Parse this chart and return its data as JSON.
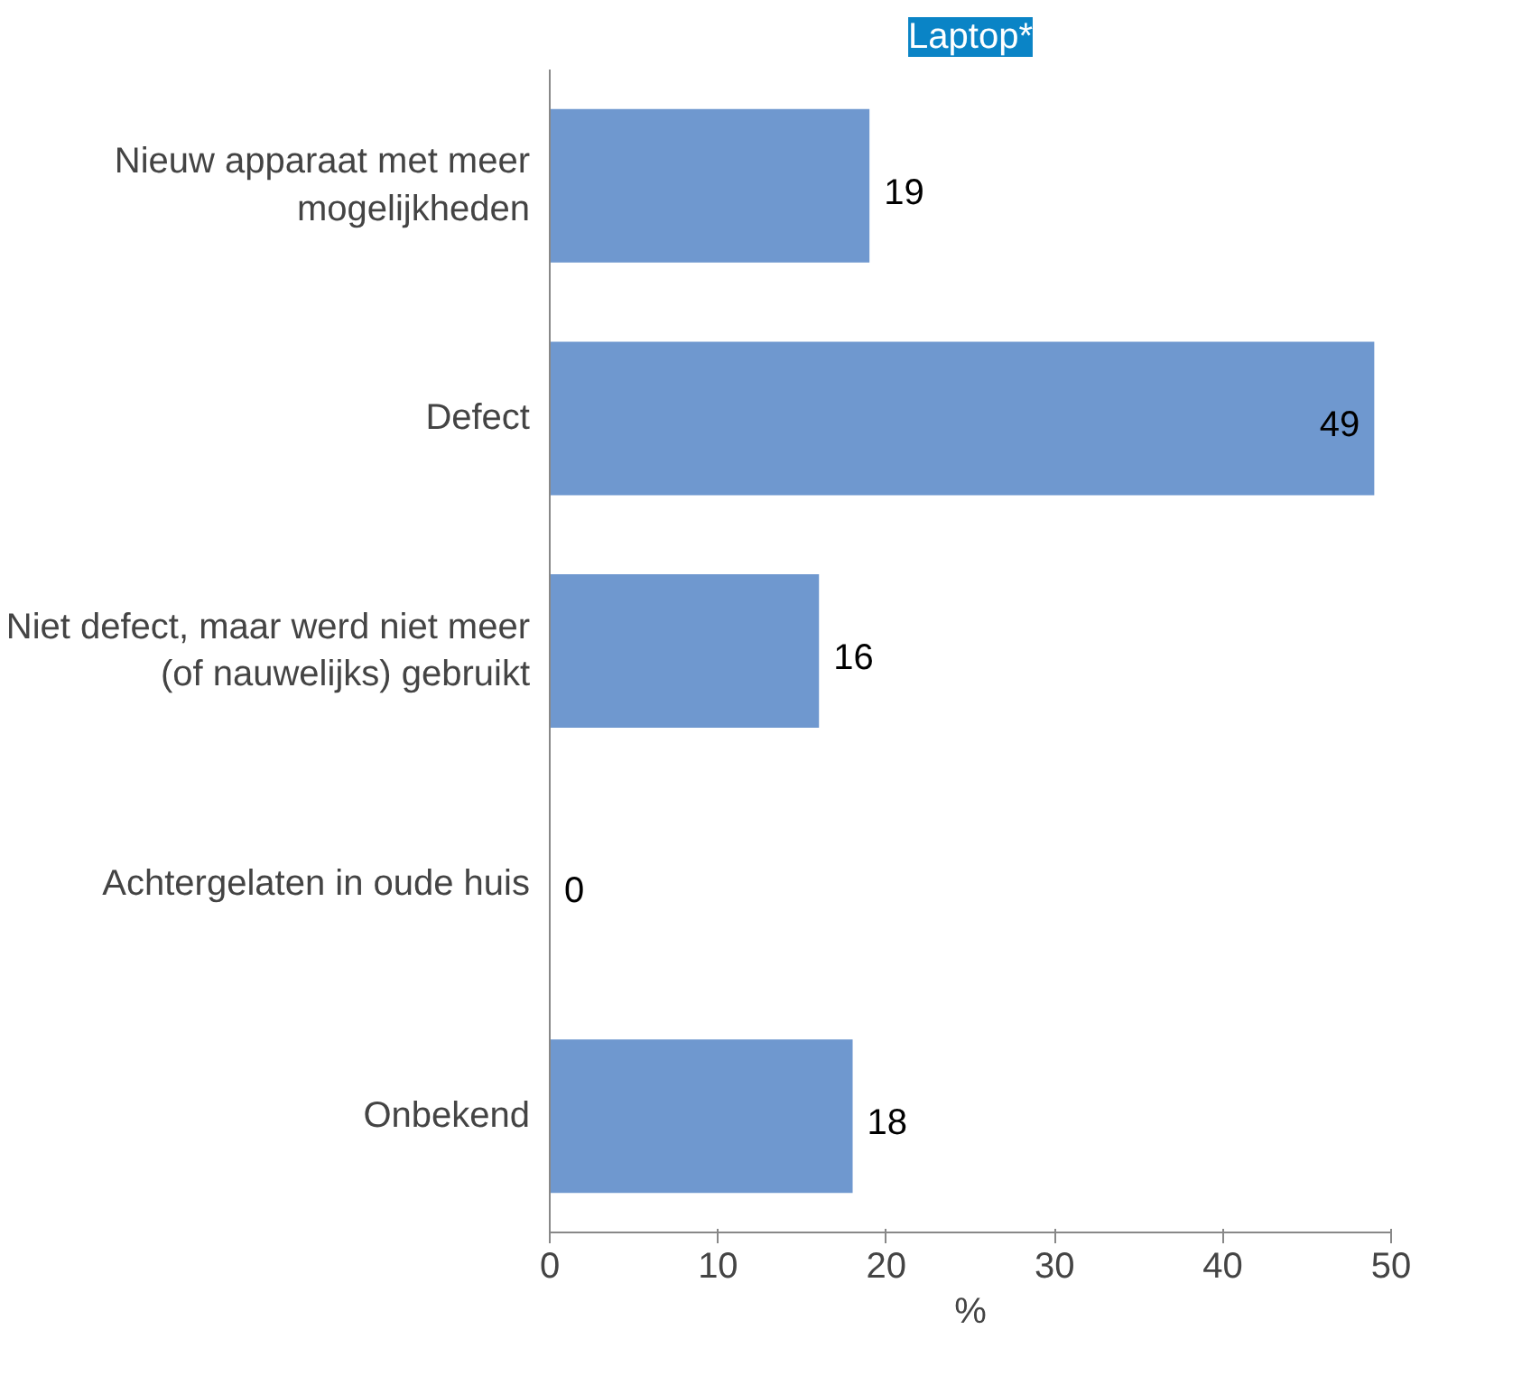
{
  "chart_data": {
    "type": "bar",
    "orientation": "horizontal",
    "title": "Laptop*",
    "xlabel": "%",
    "categories": [
      "Nieuw apparaat met meer mogelijkheden",
      "Defect",
      "Niet defect, maar werd niet meer (of nauwelijks) gebruikt",
      "Achtergelaten in oude huis",
      "Onbekend"
    ],
    "values": [
      19,
      49,
      16,
      0,
      18
    ],
    "color": "#6f98cf",
    "xlim": [
      0,
      50
    ],
    "xticks": [
      0,
      10,
      20,
      30,
      40,
      50
    ],
    "data_labels": true,
    "grid": false
  }
}
